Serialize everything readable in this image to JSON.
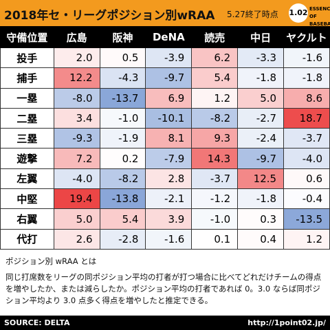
{
  "header": {
    "title": "2018年セ・リーグポジション別wRAA",
    "subtitle": "5.27終了時点",
    "logo": {
      "mark": "1.02",
      "text": "ESSENCE OF BASEBALL"
    }
  },
  "table": {
    "columns": [
      "守備位置",
      "広島",
      "阪神",
      "DeNA",
      "読売",
      "中日",
      "ヤクルト"
    ],
    "rows": [
      [
        "投手",
        "2.0",
        "0.5",
        "-3.9",
        "6.2",
        "-3.3",
        "-1.6"
      ],
      [
        "捕手",
        "12.2",
        "-4.3",
        "-9.7",
        "5.4",
        "-1.8",
        "-1.8"
      ],
      [
        "一塁",
        "-8.0",
        "-13.7",
        "6.9",
        "1.2",
        "5.0",
        "8.6"
      ],
      [
        "二塁",
        "3.4",
        "-1.0",
        "-10.1",
        "-8.2",
        "-2.7",
        "18.7"
      ],
      [
        "三塁",
        "-9.3",
        "-1.9",
        "8.1",
        "9.3",
        "-2.4",
        "-3.7"
      ],
      [
        "遊撃",
        "7.2",
        "0.2",
        "-7.9",
        "14.3",
        "-9.7",
        "-4.0"
      ],
      [
        "左翼",
        "-4.0",
        "-8.2",
        "2.8",
        "-3.7",
        "12.5",
        "0.6"
      ],
      [
        "中堅",
        "19.4",
        "-13.8",
        "-2.1",
        "-1.2",
        "-1.8",
        "-0.4"
      ],
      [
        "右翼",
        "5.0",
        "5.4",
        "3.9",
        "-1.0",
        "0.3",
        "-13.5"
      ],
      [
        "代打",
        "2.6",
        "-2.8",
        "-1.6",
        "0.1",
        "0.4",
        "1.2"
      ]
    ]
  },
  "note": {
    "title": "ポジション別 wRAA とは",
    "body": "同じ打席数をリーグの同ポジション平均の打者が打つ場合に比べてどれだけチームの得点を増やしたか、または減らしたか。ポジション平均の打者であれば 0。3.0 ならば同ポジション平均より 3.0 点多く得点を増やしたと推定できる。"
  },
  "footer": {
    "source": "SOURCE: DELTA",
    "url": "http://1point02.jp/"
  }
}
